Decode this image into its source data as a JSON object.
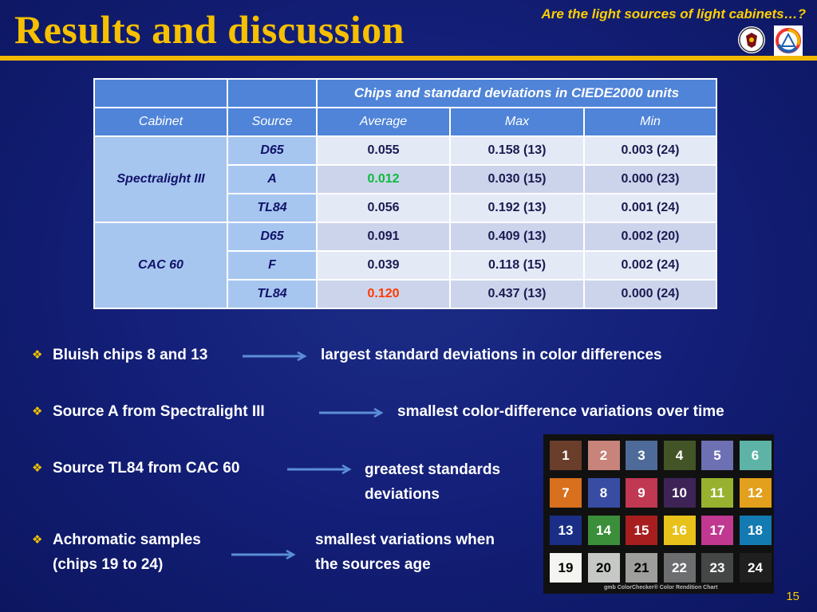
{
  "header": {
    "title": "Results and discussion",
    "subtitle": "Are the light sources of light cabinets…?"
  },
  "table": {
    "caption": "Chips and standard deviations in CIEDE2000 units",
    "col_cabinet": "Cabinet",
    "col_source": "Source",
    "col_average": "Average",
    "col_max": "Max",
    "col_min": "Min",
    "groups": [
      {
        "cabinet": "Spectralight III",
        "rows": [
          {
            "source": "D65",
            "average": "0.055",
            "max": "0.158 (13)",
            "min": "0.003 (24)"
          },
          {
            "source": "A",
            "average": "0.012",
            "max": "0.030 (15)",
            "min": "0.000 (23)"
          },
          {
            "source": "TL84",
            "average": "0.056",
            "max": "0.192 (13)",
            "min": "0.001 (24)"
          }
        ]
      },
      {
        "cabinet": "CAC 60",
        "rows": [
          {
            "source": "D65",
            "average": "0.091",
            "max": "0.409 (13)",
            "min": "0.002 (20)"
          },
          {
            "source": "F",
            "average": "0.039",
            "max": "0.118 (15)",
            "min": "0.002 (24)"
          },
          {
            "source": "TL84",
            "average": "0.120",
            "max": "0.437 (13)",
            "min": "0.000 (24)"
          }
        ]
      }
    ]
  },
  "bullets": [
    {
      "left": "Bluish chips 8 and 13",
      "right": "largest standard deviations in color differences"
    },
    {
      "left": "Source A from Spectralight III",
      "right": "smallest color-difference variations over time"
    },
    {
      "left": "Source TL84 from CAC 60",
      "right_l1": "greatest standards",
      "right_l2": "deviations"
    },
    {
      "left_l1": "Achromatic samples",
      "left_l2": "(chips 19 to 24)",
      "right_l1": "smallest variations when",
      "right_l2": "the sources age"
    }
  ],
  "colorchecker": {
    "chips": [
      "1",
      "2",
      "3",
      "4",
      "5",
      "6",
      "7",
      "8",
      "9",
      "10",
      "11",
      "12",
      "13",
      "14",
      "15",
      "16",
      "17",
      "18",
      "19",
      "20",
      "21",
      "22",
      "23",
      "24"
    ],
    "colors": [
      "#6a3e2a",
      "#c8837a",
      "#4e6a98",
      "#435426",
      "#6e70b4",
      "#5db4a6",
      "#d8701e",
      "#384ca4",
      "#c03852",
      "#3e2456",
      "#98b230",
      "#e2a01c",
      "#1b2e86",
      "#3b8e3a",
      "#a81e1e",
      "#e8c21a",
      "#c03890",
      "#137ab2",
      "#f4f4f0",
      "#c6c8c6",
      "#9e9e9c",
      "#6c6e70",
      "#454746",
      "#1f1f1f"
    ],
    "text_colors": [
      "#fff",
      "#fff",
      "#fff",
      "#fff",
      "#fff",
      "#fff",
      "#fff",
      "#fff",
      "#fff",
      "#fff",
      "#fff",
      "#fff",
      "#fff",
      "#fff",
      "#fff",
      "#fff",
      "#fff",
      "#fff",
      "#000",
      "#000",
      "#000",
      "#fff",
      "#fff",
      "#fff"
    ],
    "footer": "gmb     ColorChecker® Color Rendition Chart"
  },
  "page_number": "15"
}
